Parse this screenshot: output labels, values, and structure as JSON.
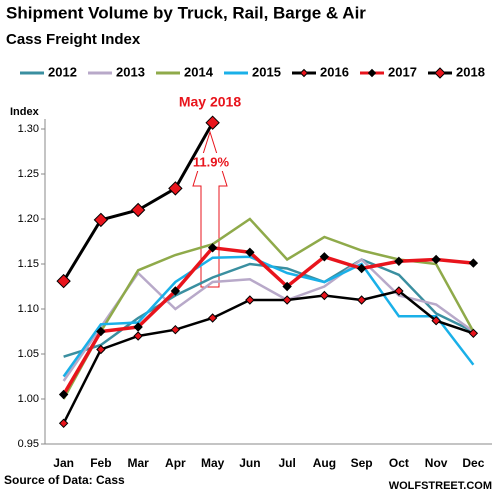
{
  "chart_data": {
    "type": "line",
    "title": "Shipment Volume by Truck, Rail, Barge & Air",
    "subtitle": "Cass Freight Index",
    "y_label": "Index",
    "source": "Source of Data: Cass",
    "credit": "WOLFSTREET.COM",
    "annotations": [
      "May 2018",
      "11.9%"
    ],
    "categories": [
      "Jan",
      "Feb",
      "Mar",
      "Apr",
      "May",
      "Jun",
      "Jul",
      "Aug",
      "Sep",
      "Oct",
      "Nov",
      "Dec"
    ],
    "ylim": [
      0.95,
      1.3
    ],
    "yticks": [
      0.95,
      {
        "value": 1.0,
        "label": "1.00"
      },
      1.05,
      {
        "value": 1.1,
        "label": "1.10"
      },
      1.15,
      {
        "value": 1.2,
        "label": "1.20"
      },
      1.25,
      {
        "value": 1.3,
        "label": "1.30"
      }
    ],
    "series": [
      {
        "name": "2012",
        "color": "#3a8fa0",
        "values": [
          1.047,
          1.06,
          1.09,
          1.115,
          1.135,
          1.15,
          1.145,
          1.13,
          1.155,
          1.138,
          1.095,
          1.075
        ]
      },
      {
        "name": "2013",
        "color": "#b8a9c9",
        "values": [
          1.02,
          1.08,
          1.14,
          1.1,
          1.13,
          1.133,
          1.11,
          1.125,
          1.155,
          1.115,
          1.105,
          1.075
        ]
      },
      {
        "name": "2014",
        "color": "#8faa4a",
        "values": [
          1.0,
          1.075,
          1.143,
          1.16,
          1.172,
          1.2,
          1.155,
          1.18,
          1.165,
          1.155,
          1.15,
          1.075
        ]
      },
      {
        "name": "2015",
        "color": "#1ab0e8",
        "values": [
          1.025,
          1.083,
          1.085,
          1.13,
          1.157,
          1.158,
          1.14,
          1.13,
          1.15,
          1.092,
          1.092,
          1.038
        ]
      },
      {
        "name": "2016",
        "color": "#000000",
        "marker_color": "#e8141c",
        "values": [
          0.973,
          1.055,
          1.07,
          1.077,
          1.09,
          1.11,
          1.11,
          1.115,
          1.11,
          1.12,
          1.087,
          1.073
        ]
      },
      {
        "name": "2017",
        "color": "#e8141c",
        "marker_color": "#000000",
        "values": [
          1.005,
          1.075,
          1.08,
          1.12,
          1.168,
          1.163,
          1.125,
          1.158,
          1.145,
          1.153,
          1.155,
          1.151
        ]
      },
      {
        "name": "2018",
        "color": "#000000",
        "marker_color": "#e8141c",
        "values": [
          1.131,
          1.199,
          1.21,
          1.234,
          1.307,
          null,
          null,
          null,
          null,
          null,
          null,
          null
        ]
      }
    ]
  }
}
